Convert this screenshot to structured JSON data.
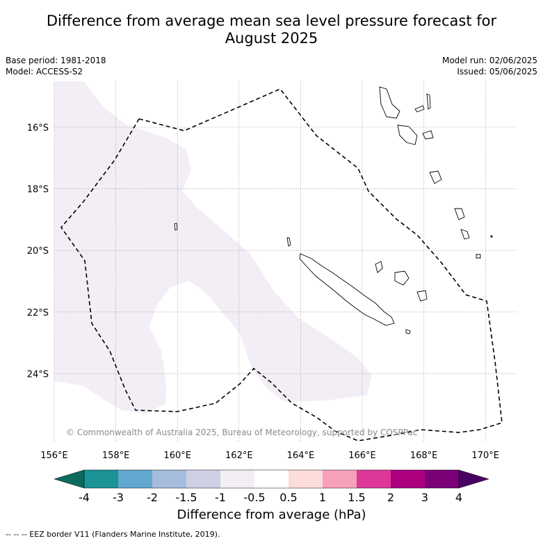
{
  "title_line1": "Difference from average mean sea level pressure forecast for",
  "title_line2": "August 2025",
  "meta_left": [
    "Base period: 1981-2018",
    "Model: ACCESS-S2"
  ],
  "meta_right": [
    "Model run: 02/06/2025",
    "Issued: 05/06/2025"
  ],
  "copyright": "© Commonwealth of Australia 2025, Bureau of Meteorology, supported by COSPPac",
  "lon_labels": [
    "156°E",
    "158°E",
    "160°E",
    "162°E",
    "164°E",
    "166°E",
    "168°E",
    "170°E"
  ],
  "lat_labels": [
    "16°S",
    "18°S",
    "20°S",
    "22°S",
    "24°S"
  ],
  "colorbar": {
    "ticks": [
      "-4",
      "-3",
      "-2",
      "-1.5",
      "-1",
      "-0.5",
      "0.5",
      "1",
      "1.5",
      "2",
      "3",
      "4"
    ],
    "colors": [
      "#0d6b5e",
      "#1b9397",
      "#62a8d1",
      "#a5bcdc",
      "#cfd0e6",
      "#f3eef6",
      "#ffffff",
      "#fddcdc",
      "#f7a0ba",
      "#dc3799",
      "#ac0081",
      "#7b0078",
      "#490064"
    ],
    "label": "Difference from average (hPa)"
  },
  "legend_footnote": "-- -- -- EEZ border V11 (Flanders Marine Institute, 2019).",
  "anomaly_region": {
    "range": "-1 to -0.5",
    "color": "#f3eef6"
  }
}
